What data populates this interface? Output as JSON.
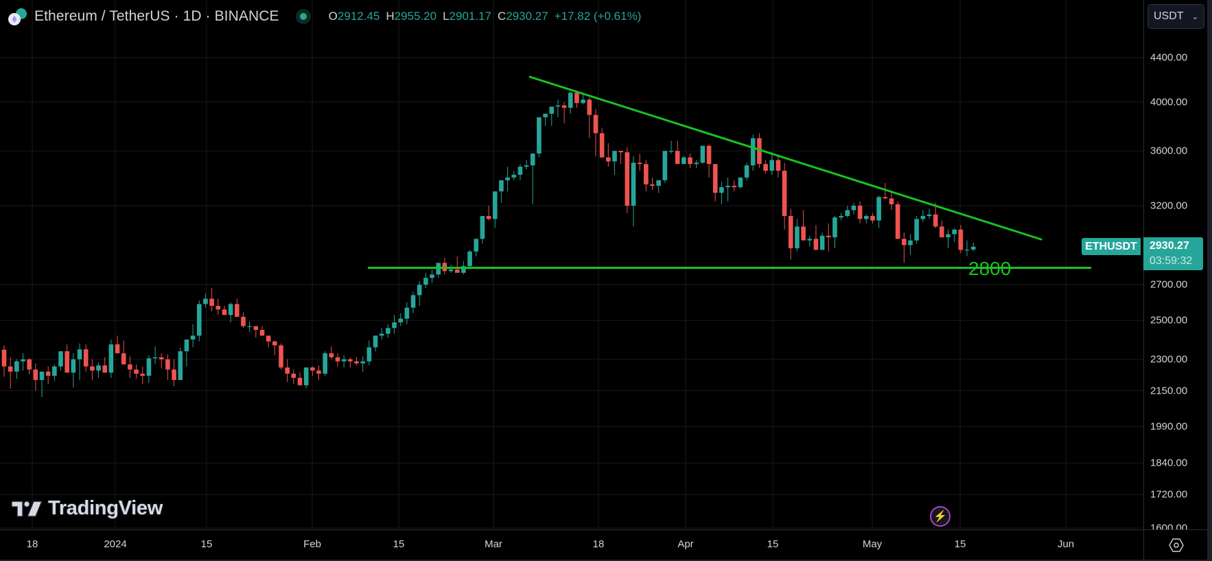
{
  "header": {
    "title": "Ethereum / TetherUS · 1D · BINANCE",
    "symbol_icons": [
      "ethereum-icon",
      "tether-icon"
    ],
    "market_status": "open",
    "ohlc": {
      "o_label": "O",
      "o": "2912.45",
      "h_label": "H",
      "h": "2955.20",
      "l_label": "L",
      "l": "2901.17",
      "c_label": "C",
      "c": "2930.27",
      "change": "+17.82 (+0.61%)"
    }
  },
  "currency_selector": {
    "value": "USDT"
  },
  "price_axis": {
    "labels": [
      {
        "text": "4400.00",
        "price": 4400
      },
      {
        "text": "4000.00",
        "price": 4000
      },
      {
        "text": "3600.00",
        "price": 3600
      },
      {
        "text": "3200.00",
        "price": 3200
      },
      {
        "text": "2700.00",
        "price": 2700
      },
      {
        "text": "2500.00",
        "price": 2500
      },
      {
        "text": "2300.00",
        "price": 2300
      },
      {
        "text": "2150.00",
        "price": 2150
      },
      {
        "text": "1990.00",
        "price": 1990
      },
      {
        "text": "1840.00",
        "price": 1840
      },
      {
        "text": "1720.00",
        "price": 1720
      },
      {
        "text": "1600.00",
        "price": 1600
      }
    ],
    "symbol_tag": "ETHUSDT",
    "last_price": "2930.27",
    "countdown": "03:59:32"
  },
  "time_axis": {
    "labels": [
      {
        "text": "18",
        "x": 47
      },
      {
        "text": "2024",
        "x": 168
      },
      {
        "text": "15",
        "x": 301
      },
      {
        "text": "Feb",
        "x": 455
      },
      {
        "text": "15",
        "x": 581
      },
      {
        "text": "Mar",
        "x": 719
      },
      {
        "text": "18",
        "x": 872
      },
      {
        "text": "Apr",
        "x": 999
      },
      {
        "text": "15",
        "x": 1126
      },
      {
        "text": "May",
        "x": 1271
      },
      {
        "text": "15",
        "x": 1399
      },
      {
        "text": "Jun",
        "x": 1553
      }
    ]
  },
  "drawings": {
    "support_level_label": "2800",
    "support_color": "#19c320",
    "trendline_color": "#19c320"
  },
  "branding": {
    "logo_text": "TradingView"
  },
  "colors": {
    "up": "#26a69a",
    "down": "#ef5350",
    "background": "#000000",
    "grid": "#1a1a1a"
  },
  "chart_data": {
    "type": "candlestick",
    "title": "Ethereum / TetherUS · 1D · BINANCE",
    "xlabel": "",
    "ylabel": "USDT",
    "ylim": [
      1600,
      4500
    ],
    "y_scale": "log",
    "x_ticks": [
      "18",
      "2024",
      "15",
      "Feb",
      "15",
      "Mar",
      "18",
      "Apr",
      "15",
      "May",
      "15",
      "Jun"
    ],
    "y_ticks": [
      4400,
      4000,
      3600,
      3200,
      2700,
      2500,
      2300,
      2150,
      1990,
      1840,
      1720,
      1600
    ],
    "annotations": [
      {
        "type": "horizontal_line",
        "price": 2800,
        "label": "2800",
        "color": "#19c320"
      },
      {
        "type": "trendline",
        "from": {
          "date": "2024-03-07",
          "price": 4250
        },
        "to": {
          "date": "2024-05-27",
          "price": 3000
        },
        "color": "#19c320"
      }
    ],
    "last": {
      "o": 2912.45,
      "h": 2955.2,
      "l": 2901.17,
      "c": 2930.27,
      "change": 17.82,
      "change_pct": 0.61
    },
    "candles": [
      [
        2348,
        2370,
        2215,
        2265
      ],
      [
        2265,
        2310,
        2160,
        2240
      ],
      [
        2240,
        2300,
        2205,
        2290
      ],
      [
        2290,
        2330,
        2245,
        2300
      ],
      [
        2300,
        2305,
        2225,
        2250
      ],
      [
        2250,
        2280,
        2150,
        2200
      ],
      [
        2200,
        2225,
        2120,
        2240
      ],
      [
        2240,
        2265,
        2180,
        2220
      ],
      [
        2220,
        2275,
        2195,
        2265
      ],
      [
        2265,
        2320,
        2245,
        2340
      ],
      [
        2340,
        2375,
        2280,
        2235
      ],
      [
        2235,
        2330,
        2165,
        2300
      ],
      [
        2300,
        2380,
        2200,
        2350
      ],
      [
        2350,
        2375,
        2240,
        2265
      ],
      [
        2265,
        2300,
        2200,
        2245
      ],
      [
        2245,
        2285,
        2210,
        2270
      ],
      [
        2270,
        2310,
        2260,
        2235
      ],
      [
        2235,
        2400,
        2210,
        2375
      ],
      [
        2375,
        2420,
        2340,
        2330
      ],
      [
        2330,
        2395,
        2285,
        2275
      ],
      [
        2275,
        2315,
        2210,
        2250
      ],
      [
        2250,
        2275,
        2205,
        2230
      ],
      [
        2230,
        2265,
        2180,
        2220
      ],
      [
        2220,
        2320,
        2185,
        2305
      ],
      [
        2305,
        2365,
        2275,
        2310
      ],
      [
        2310,
        2330,
        2255,
        2300
      ],
      [
        2300,
        2325,
        2200,
        2250
      ],
      [
        2250,
        2300,
        2170,
        2200
      ],
      [
        2200,
        2360,
        2200,
        2340
      ],
      [
        2340,
        2380,
        2265,
        2400
      ],
      [
        2400,
        2480,
        2360,
        2420
      ],
      [
        2420,
        2610,
        2390,
        2590
      ],
      [
        2590,
        2650,
        2570,
        2620
      ],
      [
        2620,
        2680,
        2550,
        2580
      ],
      [
        2580,
        2620,
        2530,
        2560
      ],
      [
        2560,
        2580,
        2540,
        2530
      ],
      [
        2530,
        2600,
        2490,
        2590
      ],
      [
        2590,
        2620,
        2550,
        2520
      ],
      [
        2520,
        2545,
        2460,
        2470
      ],
      [
        2470,
        2495,
        2440,
        2470
      ],
      [
        2470,
        2460,
        2410,
        2450
      ],
      [
        2450,
        2470,
        2430,
        2420
      ],
      [
        2420,
        2410,
        2360,
        2390
      ],
      [
        2390,
        2395,
        2320,
        2370
      ],
      [
        2370,
        2380,
        2250,
        2260
      ],
      [
        2260,
        2300,
        2190,
        2230
      ],
      [
        2230,
        2250,
        2180,
        2210
      ],
      [
        2210,
        2235,
        2190,
        2175
      ],
      [
        2175,
        2230,
        2160,
        2260
      ],
      [
        2260,
        2265,
        2220,
        2245
      ],
      [
        2245,
        2270,
        2200,
        2230
      ],
      [
        2230,
        2340,
        2220,
        2330
      ],
      [
        2330,
        2365,
        2300,
        2310
      ],
      [
        2310,
        2330,
        2265,
        2290
      ],
      [
        2290,
        2320,
        2260,
        2300
      ],
      [
        2300,
        2310,
        2260,
        2290
      ],
      [
        2290,
        2310,
        2270,
        2280
      ],
      [
        2280,
        2315,
        2240,
        2290
      ],
      [
        2290,
        2395,
        2270,
        2360
      ],
      [
        2360,
        2420,
        2340,
        2420
      ],
      [
        2420,
        2460,
        2400,
        2430
      ],
      [
        2430,
        2480,
        2410,
        2460
      ],
      [
        2460,
        2530,
        2430,
        2490
      ],
      [
        2490,
        2540,
        2470,
        2510
      ],
      [
        2510,
        2600,
        2480,
        2570
      ],
      [
        2570,
        2660,
        2540,
        2640
      ],
      [
        2640,
        2720,
        2580,
        2700
      ],
      [
        2700,
        2770,
        2680,
        2740
      ],
      [
        2740,
        2790,
        2710,
        2760
      ],
      [
        2760,
        2830,
        2740,
        2830
      ],
      [
        2830,
        2860,
        2760,
        2780
      ],
      [
        2780,
        2820,
        2770,
        2790
      ],
      [
        2790,
        2870,
        2770,
        2770
      ],
      [
        2770,
        2840,
        2760,
        2810
      ],
      [
        2810,
        2910,
        2790,
        2900
      ],
      [
        2900,
        2980,
        2870,
        2980
      ],
      [
        2980,
        3050,
        2950,
        3130
      ],
      [
        3130,
        3200,
        3100,
        3110
      ],
      [
        3110,
        3260,
        3050,
        3300
      ],
      [
        3300,
        3350,
        3220,
        3380
      ],
      [
        3380,
        3480,
        3300,
        3400
      ],
      [
        3400,
        3450,
        3380,
        3420
      ],
      [
        3420,
        3500,
        3380,
        3480
      ],
      [
        3480,
        3530,
        3460,
        3490
      ],
      [
        3490,
        3510,
        3210,
        3580
      ],
      [
        3580,
        3700,
        3550,
        3870
      ],
      [
        3870,
        3900,
        3800,
        3900
      ],
      [
        3900,
        3960,
        3800,
        3960
      ],
      [
        3960,
        4020,
        3870,
        3970
      ],
      [
        3970,
        4000,
        3820,
        3950
      ],
      [
        3950,
        4090,
        3900,
        4080
      ],
      [
        4080,
        4100,
        3950,
        3990
      ],
      [
        3990,
        4070,
        3980,
        4020
      ],
      [
        4020,
        4040,
        3700,
        3890
      ],
      [
        3890,
        3940,
        3560,
        3740
      ],
      [
        3740,
        3780,
        3600,
        3550
      ],
      [
        3550,
        3660,
        3480,
        3520
      ],
      [
        3520,
        3600,
        3420,
        3600
      ],
      [
        3600,
        3600,
        3500,
        3590
      ],
      [
        3590,
        3630,
        3150,
        3200
      ],
      [
        3200,
        3560,
        3060,
        3510
      ],
      [
        3510,
        3580,
        3450,
        3500
      ],
      [
        3500,
        3530,
        3300,
        3350
      ],
      [
        3350,
        3400,
        3310,
        3340
      ],
      [
        3340,
        3370,
        3290,
        3380
      ],
      [
        3380,
        3600,
        3360,
        3600
      ],
      [
        3600,
        3680,
        3580,
        3600
      ],
      [
        3600,
        3680,
        3510,
        3500
      ],
      [
        3500,
        3560,
        3510,
        3550
      ],
      [
        3550,
        3580,
        3470,
        3500
      ],
      [
        3500,
        3530,
        3470,
        3510
      ],
      [
        3510,
        3640,
        3500,
        3640
      ],
      [
        3640,
        3650,
        3400,
        3500
      ],
      [
        3500,
        3500,
        3230,
        3290
      ],
      [
        3290,
        3370,
        3210,
        3330
      ],
      [
        3330,
        3400,
        3230,
        3340
      ],
      [
        3340,
        3380,
        3300,
        3330
      ],
      [
        3330,
        3400,
        3320,
        3400
      ],
      [
        3400,
        3510,
        3380,
        3490
      ],
      [
        3490,
        3730,
        3450,
        3700
      ],
      [
        3700,
        3740,
        3470,
        3500
      ],
      [
        3500,
        3530,
        3430,
        3450
      ],
      [
        3450,
        3590,
        3420,
        3530
      ],
      [
        3530,
        3560,
        3400,
        3450
      ],
      [
        3450,
        3510,
        3040,
        3130
      ],
      [
        3130,
        3180,
        2850,
        2920
      ],
      [
        2920,
        3110,
        2900,
        3060
      ],
      [
        3060,
        3170,
        2970,
        2970
      ],
      [
        2970,
        3000,
        2930,
        2980
      ],
      [
        2980,
        3070,
        2950,
        2910
      ],
      [
        2910,
        3020,
        2950,
        3000
      ],
      [
        3000,
        3080,
        2900,
        2990
      ],
      [
        2990,
        3130,
        2920,
        3120
      ],
      [
        3120,
        3150,
        3100,
        3130
      ],
      [
        3130,
        3200,
        3120,
        3170
      ],
      [
        3170,
        3220,
        3140,
        3200
      ],
      [
        3200,
        3230,
        3080,
        3110
      ],
      [
        3110,
        3140,
        3080,
        3130
      ],
      [
        3130,
        3150,
        3080,
        3100
      ],
      [
        3100,
        3270,
        3050,
        3260
      ],
      [
        3260,
        3360,
        3250,
        3250
      ],
      [
        3250,
        3290,
        3170,
        3210
      ],
      [
        3210,
        3230,
        3150,
        2980
      ],
      [
        2980,
        3020,
        2830,
        2940
      ],
      [
        2940,
        3010,
        2880,
        2970
      ],
      [
        2970,
        3130,
        2950,
        3110
      ],
      [
        3110,
        3170,
        3090,
        3130
      ],
      [
        3130,
        3180,
        3110,
        3140
      ],
      [
        3140,
        3220,
        3050,
        3060
      ],
      [
        3060,
        3100,
        2990,
        2990
      ],
      [
        2990,
        3040,
        2920,
        3010
      ],
      [
        3010,
        3050,
        2960,
        3040
      ],
      [
        3040,
        3070,
        2890,
        2910
      ],
      [
        2910,
        2970,
        2870,
        2912
      ],
      [
        2912,
        2955,
        2901,
        2930
      ]
    ]
  }
}
